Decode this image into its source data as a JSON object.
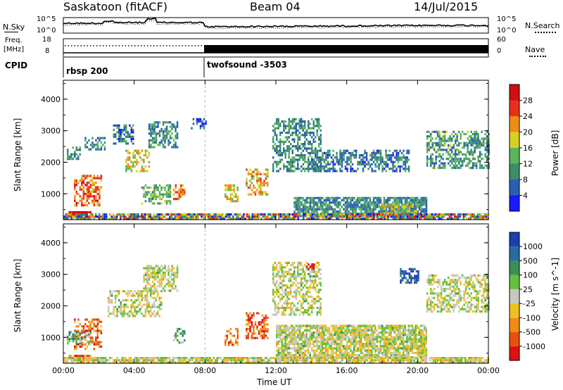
{
  "header": {
    "station": "Saskatoon (fitACF)",
    "beam": "Beam 04",
    "date": "14/Jul/2015"
  },
  "noise_panel": {
    "left_label": "N.Sky",
    "right_label": "N.Search",
    "left_ticks": [
      "10^5",
      "10^0"
    ],
    "right_ticks": [
      "10^5",
      "10^0"
    ]
  },
  "freq_panel": {
    "left_label_1": "Freq.",
    "left_label_2": "[MHz]",
    "left_ticks": [
      "18",
      "8"
    ],
    "right_label": "Nave",
    "right_ticks": [
      "60",
      "0"
    ]
  },
  "cpid_panel": {
    "label": "CPID",
    "modes": [
      {
        "name": "rbsp 200",
        "start_hour": 0
      },
      {
        "name": "twofsound -3503",
        "start_hour": 8
      }
    ]
  },
  "chart_data": [
    {
      "type": "heatmap",
      "name": "power",
      "ylabel": "Slant Range [km]",
      "yticks": [
        "1000",
        "2000",
        "3000",
        "4000"
      ],
      "ylim": [
        180,
        4600
      ],
      "colorbar_label": "Power [dB]",
      "colorbar_ticks": [
        "4",
        "8",
        "12",
        "16",
        "20",
        "24",
        "28"
      ],
      "colorscale": [
        "#1a1aff",
        "#2a5fb0",
        "#3a8f6a",
        "#5cb55c",
        "#d8d020",
        "#f08c1a",
        "#e8301a",
        "#d01010"
      ],
      "regions": [
        {
          "hours": [
            0.3,
            1.5
          ],
          "range": [
            250,
            450
          ],
          "level": 0.95
        },
        {
          "hours": [
            0.6,
            2.1
          ],
          "range": [
            650,
            1600
          ],
          "level": 0.75
        },
        {
          "hours": [
            0.2,
            0.9
          ],
          "range": [
            2100,
            2500
          ],
          "level": 0.3
        },
        {
          "hours": [
            1.2,
            2.3
          ],
          "range": [
            2400,
            2800
          ],
          "level": 0.3
        },
        {
          "hours": [
            2.8,
            3.9
          ],
          "range": [
            2600,
            3200
          ],
          "level": 0.25
        },
        {
          "hours": [
            3.5,
            4.8
          ],
          "range": [
            1700,
            2400
          ],
          "level": 0.55
        },
        {
          "hours": [
            4.8,
            6.4
          ],
          "range": [
            2500,
            3300
          ],
          "level": 0.3
        },
        {
          "hours": [
            4.4,
            6.0
          ],
          "range": [
            700,
            1300
          ],
          "level": 0.4
        },
        {
          "hours": [
            6.2,
            6.8
          ],
          "range": [
            800,
            1300
          ],
          "level": 0.7
        },
        {
          "hours": [
            7.2,
            8.0
          ],
          "range": [
            3100,
            3400
          ],
          "level": 0.15
        },
        {
          "hours": [
            9.1,
            9.8
          ],
          "range": [
            750,
            1300
          ],
          "level": 0.55
        },
        {
          "hours": [
            10.3,
            11.5
          ],
          "range": [
            1000,
            1800
          ],
          "level": 0.6
        },
        {
          "hours": [
            11.8,
            14.5
          ],
          "range": [
            1700,
            3400
          ],
          "level": 0.3
        },
        {
          "hours": [
            14.0,
            19.5
          ],
          "range": [
            1700,
            2400
          ],
          "level": 0.25
        },
        {
          "hours": [
            13.0,
            20.5
          ],
          "range": [
            300,
            900
          ],
          "level": 0.3
        },
        {
          "hours": [
            18.0,
            20.0
          ],
          "range": [
            400,
            700
          ],
          "level": 0.55
        },
        {
          "hours": [
            20.5,
            24.0
          ],
          "range": [
            1800,
            3000
          ],
          "level": 0.35
        },
        {
          "hours": [
            0.0,
            24.0
          ],
          "range": [
            200,
            380
          ],
          "level": 0.5
        }
      ]
    },
    {
      "type": "heatmap",
      "name": "velocity",
      "ylabel": "Slant Range [km]",
      "yticks": [
        "1000",
        "2000",
        "3000",
        "4000"
      ],
      "ylim": [
        180,
        4600
      ],
      "colorbar_label": "Velocity [m s^-1]",
      "colorbar_ticks": [
        "1000",
        "500",
        "100",
        "25",
        "-25",
        "-100",
        "-500",
        "-1000"
      ],
      "colorscale": [
        "#1b3fb0",
        "#2a6aa0",
        "#3a8f55",
        "#66c040",
        "#c8c8c0",
        "#f0c020",
        "#f08c1a",
        "#e85010",
        "#e01010"
      ],
      "regions": [
        {
          "hours": [
            0.3,
            1.5
          ],
          "range": [
            250,
            450
          ],
          "level": 0.72
        },
        {
          "hours": [
            0.6,
            2.1
          ],
          "range": [
            650,
            1600
          ],
          "level": 0.8
        },
        {
          "hours": [
            0.2,
            1.5
          ],
          "range": [
            800,
            1200
          ],
          "level": 0.35
        },
        {
          "hours": [
            2.5,
            5.5
          ],
          "range": [
            1700,
            2500
          ],
          "level": 0.5
        },
        {
          "hours": [
            4.5,
            6.4
          ],
          "range": [
            2500,
            3300
          ],
          "level": 0.5
        },
        {
          "hours": [
            6.2,
            6.8
          ],
          "range": [
            800,
            1300
          ],
          "level": 0.35
        },
        {
          "hours": [
            9.1,
            9.8
          ],
          "range": [
            750,
            1300
          ],
          "level": 0.75
        },
        {
          "hours": [
            10.3,
            11.5
          ],
          "range": [
            1000,
            1800
          ],
          "level": 0.82
        },
        {
          "hours": [
            11.8,
            14.5
          ],
          "range": [
            1700,
            3400
          ],
          "level": 0.5
        },
        {
          "hours": [
            13.6,
            14.1
          ],
          "range": [
            3150,
            3350
          ],
          "level": 0.98
        },
        {
          "hours": [
            12.0,
            20.5
          ],
          "range": [
            350,
            1400
          ],
          "level": 0.5
        },
        {
          "hours": [
            19.0,
            20.0
          ],
          "range": [
            2700,
            3200
          ],
          "level": 0.1
        },
        {
          "hours": [
            20.5,
            24.0
          ],
          "range": [
            1800,
            3000
          ],
          "level": 0.5
        },
        {
          "hours": [
            0.0,
            24.0
          ],
          "range": [
            200,
            380
          ],
          "level": 0.5
        }
      ]
    }
  ],
  "x_axis": {
    "label": "Time UT",
    "ticks": [
      "00:00",
      "04:00",
      "08:00",
      "12:00",
      "16:00",
      "20:00",
      "00:00"
    ]
  }
}
